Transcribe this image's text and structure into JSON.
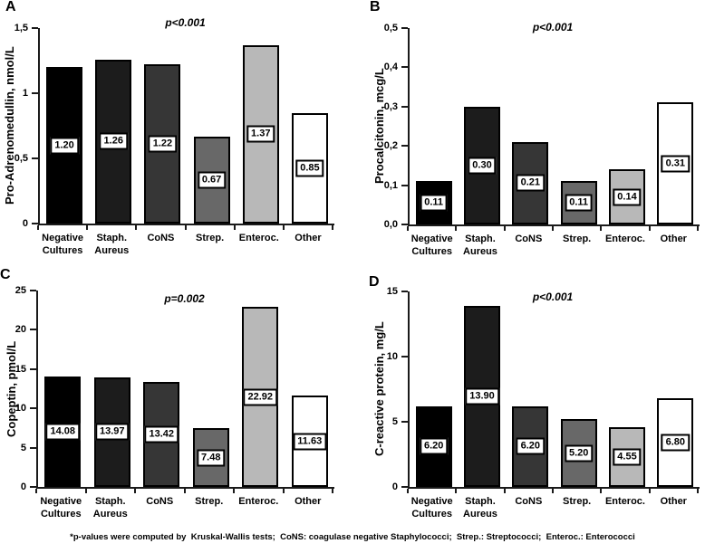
{
  "figure": {
    "footnote": "*p-values were computed by  Kruskal-Wallis tests;  CoNS: coagulase negative Staphylococci;  Strep.: Streptococci;  Enteroc.: Enterococci"
  },
  "style": {
    "bar_colors": [
      "#000000",
      "#1c1c1c",
      "#363636",
      "#686868",
      "#b8b8b8",
      "#ffffff"
    ],
    "bar_border_color": "#000000",
    "axis_color": "#1a1a1a",
    "value_box_bg": "#ffffff",
    "text_color": "#000000"
  },
  "chart_data": [
    {
      "panel": "A",
      "type": "bar",
      "title": "p<0.001",
      "ylabel": "Pro-Adrenomedullin, nmol/L",
      "categories": [
        "Negative\nCultures",
        "Staph.\nAureus",
        "CoNS",
        "Strep.",
        "Enteroc.",
        "Other"
      ],
      "values": [
        1.2,
        1.26,
        1.22,
        0.67,
        1.37,
        0.85
      ],
      "bar_labels": [
        "1.20",
        "1.26",
        "1.22",
        "0.67",
        "1.37",
        "0.85"
      ],
      "ylim": [
        0,
        1.5
      ],
      "yticks": [
        0,
        0.5,
        1,
        1.5
      ],
      "ytick_labels": [
        "0",
        "0,5",
        "1",
        "1,5"
      ],
      "grid": false,
      "legend": null
    },
    {
      "panel": "B",
      "type": "bar",
      "title": "p<0.001",
      "ylabel": "Procalcitonin, mcg/L",
      "categories": [
        "Negative\nCultures",
        "Staph.\nAureus",
        "CoNS",
        "Strep.",
        "Enteroc.",
        "Other"
      ],
      "values": [
        0.11,
        0.3,
        0.21,
        0.11,
        0.14,
        0.31
      ],
      "bar_labels": [
        "0.11",
        "0.30",
        "0.21",
        "0.11",
        "0.14",
        "0.31"
      ],
      "ylim": [
        0,
        0.5
      ],
      "yticks": [
        0,
        0.1,
        0.2,
        0.3,
        0.4,
        0.5
      ],
      "ytick_labels": [
        "0,0",
        "0,1",
        "0,2",
        "0,3",
        "0,4",
        "0,5"
      ],
      "grid": false,
      "legend": null
    },
    {
      "panel": "C",
      "type": "bar",
      "title": "p=0.002",
      "ylabel": "Copeptin, pmol/L",
      "categories": [
        "Negative\nCultures",
        "Staph.\nAureus",
        "CoNS",
        "Strep.",
        "Enteroc.",
        "Other"
      ],
      "values": [
        14.08,
        13.97,
        13.42,
        7.48,
        22.92,
        11.63
      ],
      "bar_labels": [
        "14.08",
        "13.97",
        "13.42",
        "7.48",
        "22.92",
        "11.63"
      ],
      "ylim": [
        0,
        25
      ],
      "yticks": [
        0,
        5,
        10,
        15,
        20,
        25
      ],
      "ytick_labels": [
        "0",
        "5",
        "10",
        "15",
        "20",
        "25"
      ],
      "grid": false,
      "legend": null
    },
    {
      "panel": "D",
      "type": "bar",
      "title": "p<0.001",
      "ylabel": "C-reactive protein, mg/L",
      "categories": [
        "Negative\nCultures",
        "Staph.\nAureus",
        "CoNS",
        "Strep.",
        "Enteroc.",
        "Other"
      ],
      "values": [
        6.2,
        13.9,
        6.2,
        5.2,
        4.55,
        6.8
      ],
      "bar_labels": [
        "6.20",
        "13.90",
        "6.20",
        "5.20",
        "4.55",
        "6.80"
      ],
      "ylim": [
        0,
        15
      ],
      "yticks": [
        0,
        5,
        10,
        15
      ],
      "ytick_labels": [
        "0",
        "5",
        "10",
        "15"
      ],
      "grid": false,
      "legend": null
    }
  ]
}
